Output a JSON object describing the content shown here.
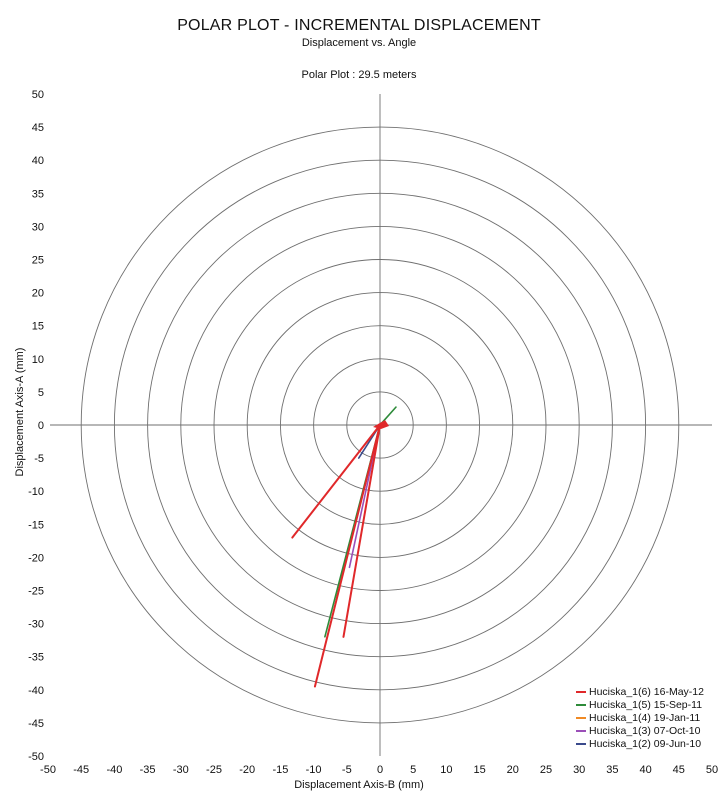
{
  "chart_data": {
    "type": "polar-vector",
    "title": "POLAR PLOT - INCREMENTAL DISPLACEMENT",
    "subtitle": "Displacement vs. Angle",
    "plot_caption": "Polar Plot :  29.5 meters",
    "xlabel": "Displacement Axis-B (mm)",
    "ylabel": "Displacement Axis-A (mm)",
    "xlim": [
      -50,
      50
    ],
    "ylim": [
      -50,
      50
    ],
    "x_ticks": [
      -50,
      -45,
      -40,
      -35,
      -30,
      -25,
      -20,
      -15,
      -10,
      -5,
      0,
      5,
      10,
      15,
      20,
      25,
      30,
      35,
      40,
      45,
      50
    ],
    "y_ticks": [
      50,
      45,
      40,
      35,
      30,
      25,
      20,
      15,
      10,
      5,
      0,
      -5,
      -10,
      -15,
      -20,
      -25,
      -30,
      -35,
      -40,
      -45,
      -50
    ],
    "circle_radii": [
      5,
      10,
      15,
      20,
      25,
      30,
      35,
      40,
      45
    ],
    "grid": true,
    "legend_position": "bottom-right",
    "series": [
      {
        "name": "Huciska_1(6) 16-May-12",
        "color": "#e0282a",
        "vectors": [
          [
            -9.8,
            -39.5
          ],
          [
            -13.2,
            -17.0
          ],
          [
            -5.5,
            -32.0
          ]
        ]
      },
      {
        "name": "Huciska_1(5) 15-Sep-11",
        "color": "#2e8b3a",
        "vectors": [
          [
            -8.3,
            -32.0
          ],
          [
            2.4,
            2.7
          ]
        ]
      },
      {
        "name": "Huciska_1(4) 19-Jan-11",
        "color": "#f08a24",
        "vectors": [
          [
            -6.5,
            -26.0
          ]
        ]
      },
      {
        "name": "Huciska_1(3) 07-Oct-10",
        "color": "#9b4fb8",
        "vectors": [
          [
            -4.6,
            -21.5
          ]
        ]
      },
      {
        "name": "Huciska_1(2) 09-Jun-10",
        "color": "#3a4a8c",
        "vectors": [
          [
            -3.2,
            -5.0
          ]
        ]
      }
    ]
  }
}
